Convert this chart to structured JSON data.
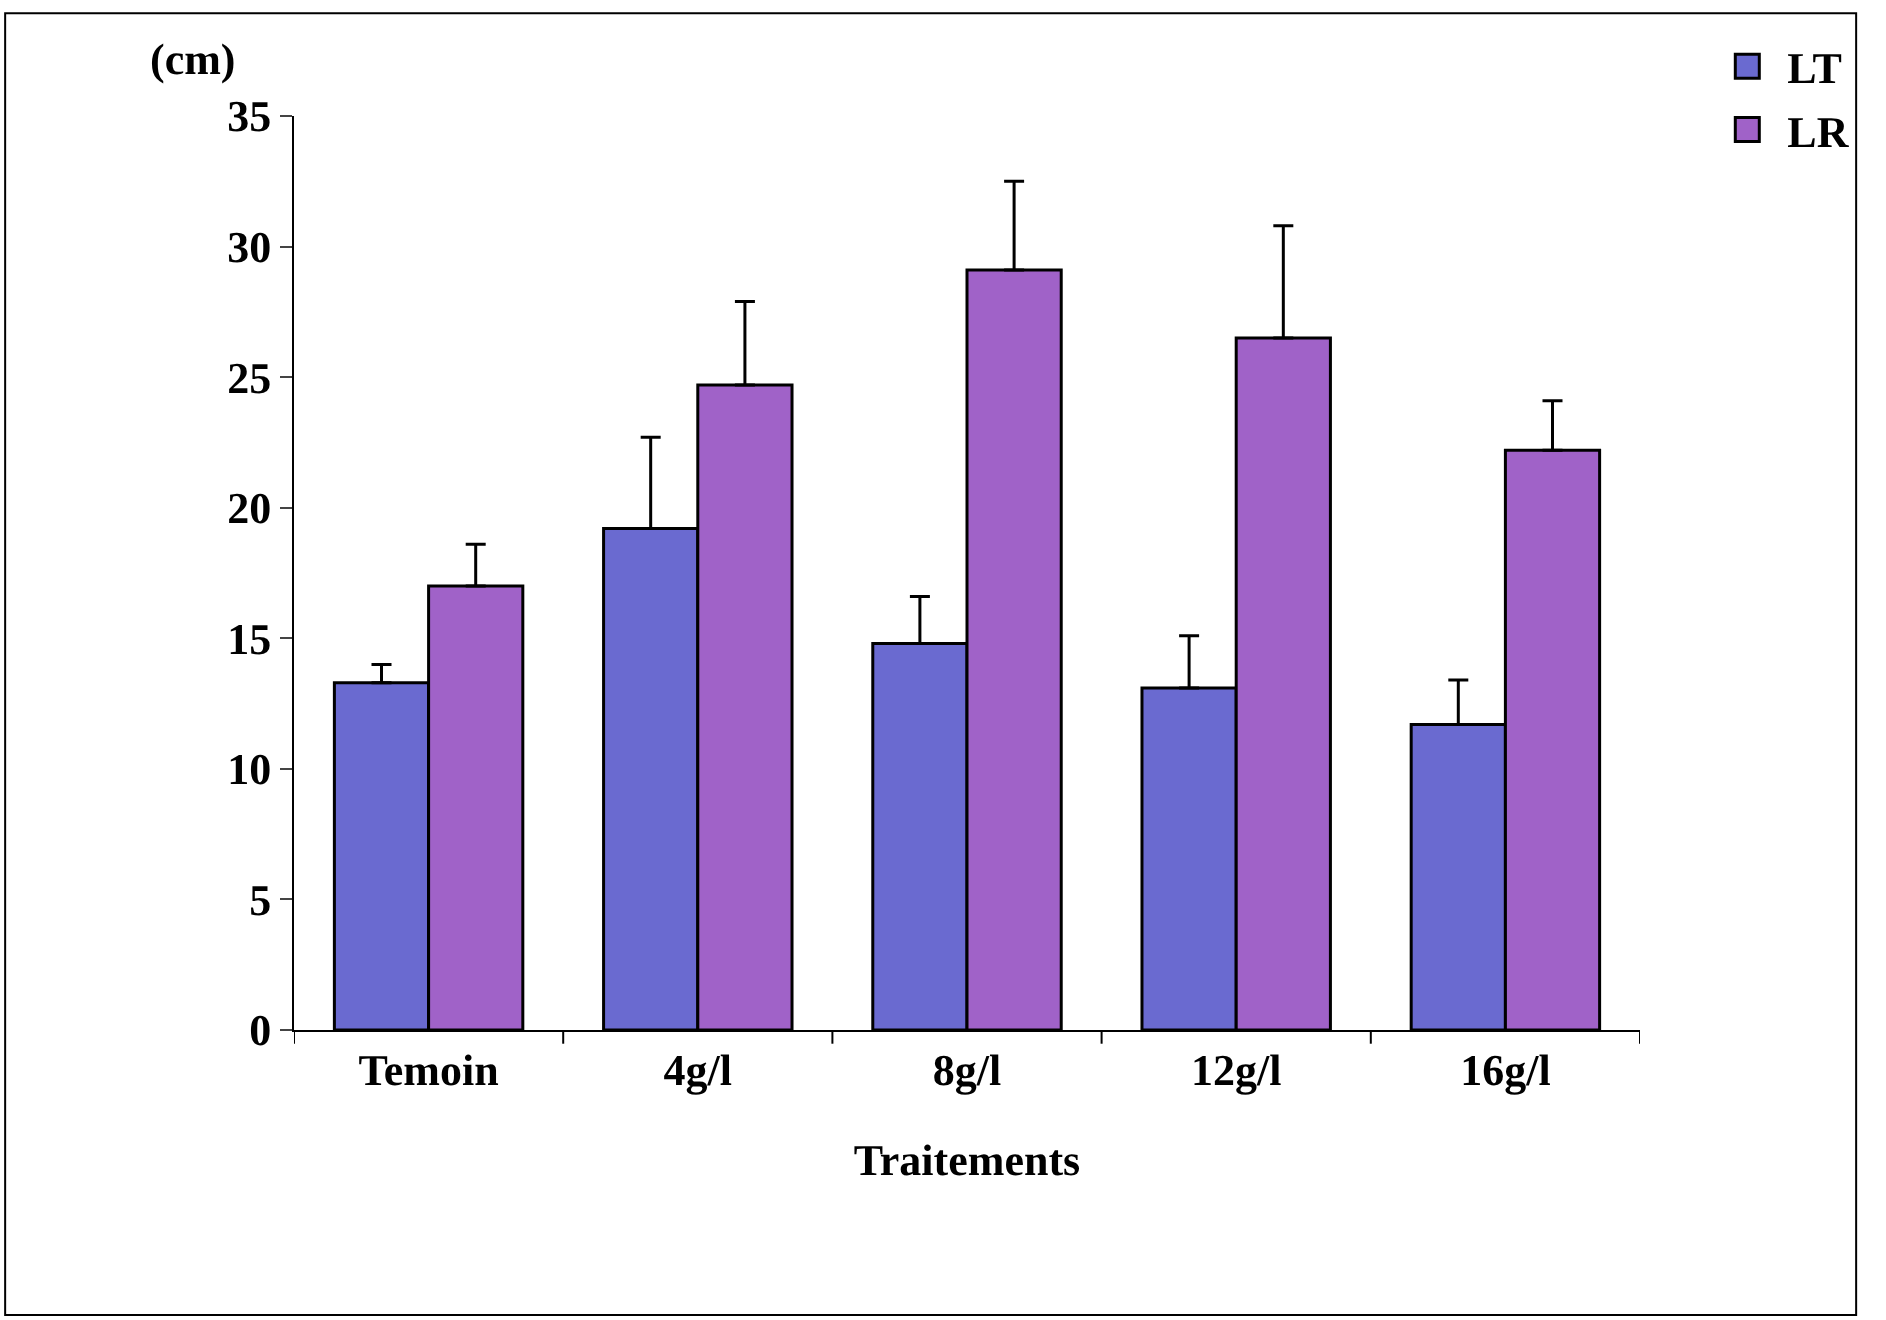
{
  "chart_data": {
    "type": "bar",
    "xlabel": "Traitements",
    "ylabel": "(cm)",
    "categories": [
      "Temoin",
      "4g/l",
      "8g/l",
      "12g/l",
      "16g/l"
    ],
    "series": [
      {
        "name": "LT",
        "color": "#6a6ad0",
        "values": [
          13.3,
          19.2,
          14.8,
          13.1,
          11.7
        ],
        "errors": [
          [
            13.3,
            14.0
          ],
          [
            19.2,
            22.7
          ],
          [
            14.8,
            16.6
          ],
          [
            13.1,
            15.1
          ],
          [
            11.7,
            13.4
          ]
        ]
      },
      {
        "name": "LR",
        "color": "#a062c8",
        "values": [
          17.0,
          24.7,
          29.1,
          26.5,
          22.2
        ],
        "errors": [
          [
            17.0,
            18.6
          ],
          [
            24.7,
            27.9
          ],
          [
            29.1,
            32.5
          ],
          [
            26.5,
            30.8
          ],
          [
            22.2,
            24.1
          ]
        ]
      }
    ],
    "ylim": [
      0,
      35
    ],
    "yticks": [
      0,
      5,
      10,
      15,
      20,
      25,
      30,
      35
    ],
    "legend": "top right"
  }
}
